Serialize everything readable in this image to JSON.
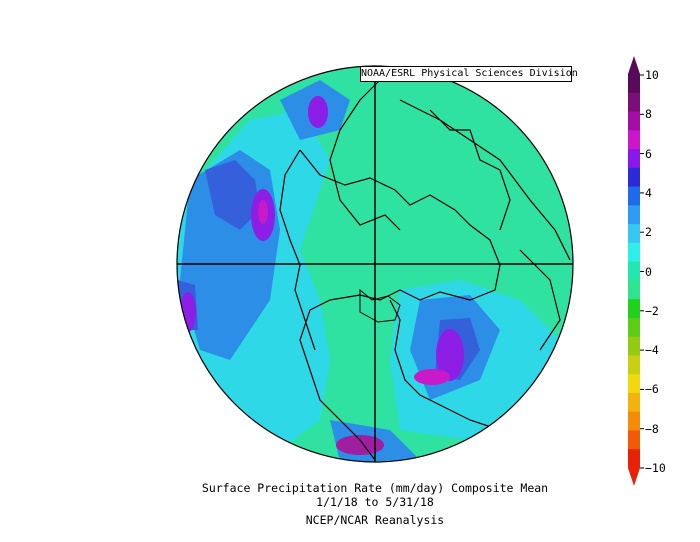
{
  "credit": "NOAA/ESRL Physical Sciences Division",
  "caption": {
    "line1": "Surface Precipitation Rate (mm/day) Composite Mean",
    "line2": "1/1/18  to 5/31/18",
    "line3": "NCEP/NCAR Reanalysis"
  },
  "colorbar": {
    "ticks": [
      "10",
      "8",
      "6",
      "4",
      "2",
      "0",
      "−2",
      "−4",
      "−6",
      "−8",
      "−10"
    ],
    "colors": [
      "#5a0a5a",
      "#7a0f7a",
      "#a40ea4",
      "#cc16cc",
      "#8a18e8",
      "#2a2ad8",
      "#1e6ae8",
      "#2e9cf4",
      "#36c8f2",
      "#2ef0e8",
      "#22e8b0",
      "#2ee692",
      "#20d21c",
      "#5ccc14",
      "#92cc10",
      "#c8d010",
      "#f2d80c",
      "#f4b20c",
      "#f48c08",
      "#f25a08",
      "#e82206"
    ]
  },
  "map": {
    "projection": "north-polar-stereographic",
    "land_outline_color": "#000000",
    "ocean_color": "#32e4a0"
  }
}
